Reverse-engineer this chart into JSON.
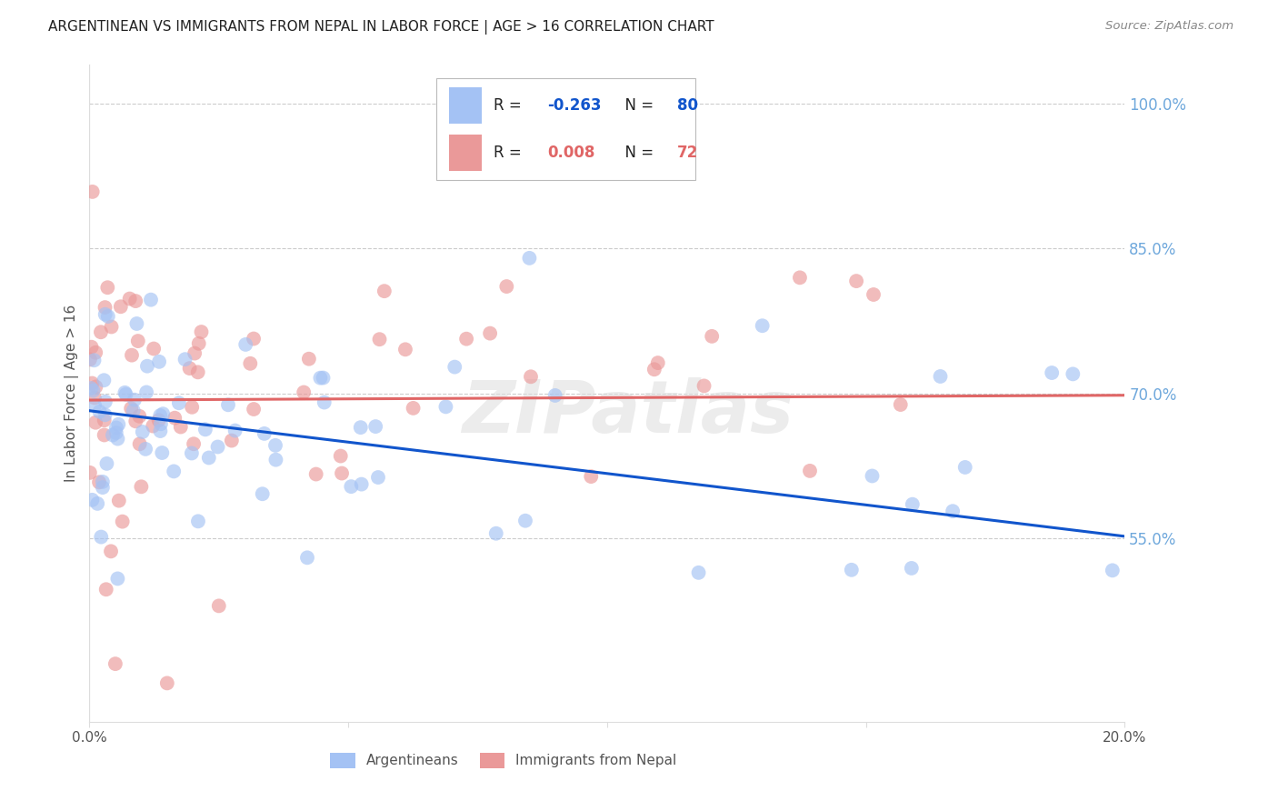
{
  "title": "ARGENTINEAN VS IMMIGRANTS FROM NEPAL IN LABOR FORCE | AGE > 16 CORRELATION CHART",
  "source": "Source: ZipAtlas.com",
  "ylabel": "In Labor Force | Age > 16",
  "xlim": [
    0.0,
    0.2
  ],
  "ylim": [
    0.36,
    1.04
  ],
  "yticks": [
    0.55,
    0.7,
    0.85,
    1.0
  ],
  "ytick_labels": [
    "55.0%",
    "70.0%",
    "85.0%",
    "100.0%"
  ],
  "blue_N": 80,
  "pink_N": 72,
  "blue_color": "#a4c2f4",
  "pink_color": "#ea9999",
  "blue_line_color": "#1155cc",
  "pink_line_color": "#e06666",
  "background_color": "#ffffff",
  "grid_color": "#cccccc",
  "title_color": "#222222",
  "source_color": "#888888",
  "right_axis_color": "#6fa8dc",
  "watermark": "ZIPatlas",
  "blue_trend_x0": 0.0,
  "blue_trend_y0": 0.682,
  "blue_trend_x1": 0.2,
  "blue_trend_y1": 0.552,
  "pink_trend_x0": 0.0,
  "pink_trend_y0": 0.693,
  "pink_trend_x1": 0.2,
  "pink_trend_y1": 0.698
}
